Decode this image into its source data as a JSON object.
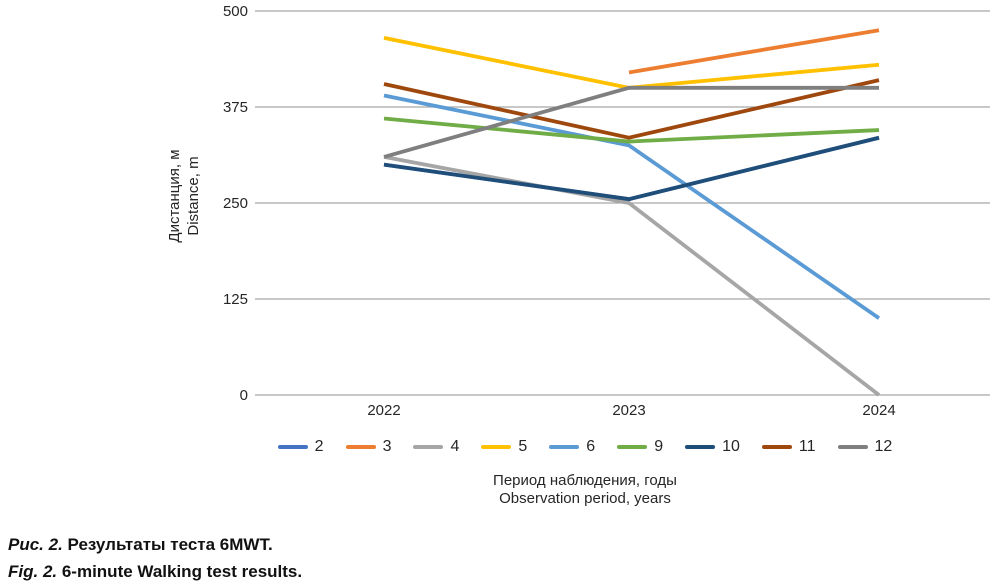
{
  "figure": {
    "caption_ru": {
      "prefix": "Рис. 2.",
      "text": " Результаты теста 6MWT."
    },
    "caption_en": {
      "prefix": "Fig. 2.",
      "text": " 6-minute Walking test results."
    }
  },
  "chart_data": {
    "type": "line",
    "x_labels": [
      "2022",
      "2023",
      "2024"
    ],
    "xlabel_ru": "Период наблюдения, годы",
    "xlabel_en": "Observation period, years",
    "ylabel_ru": "Дистанция, м",
    "ylabel_en": "Distance, m",
    "ylim": [
      0,
      500
    ],
    "yticks_top_to_bottom": [
      "500",
      "375",
      "250",
      "125",
      "0"
    ],
    "ytick_values": [
      500,
      375,
      250,
      125,
      0
    ],
    "grid": true,
    "gridline_color": "#A6A6A6",
    "legend_position": "bottom",
    "series": [
      {
        "name": "2",
        "color": "#4472C4",
        "values": [
          300,
          255,
          335
        ]
      },
      {
        "name": "3",
        "color": "#ED7D31",
        "values": [
          null,
          420,
          475
        ]
      },
      {
        "name": "4",
        "color": "#A6A6A6",
        "values": [
          310,
          250,
          0
        ]
      },
      {
        "name": "5",
        "color": "#FFC000",
        "values": [
          465,
          400,
          430
        ]
      },
      {
        "name": "6",
        "color": "#5B9BD5",
        "values": [
          390,
          325,
          100
        ]
      },
      {
        "name": "9",
        "color": "#70AD47",
        "values": [
          360,
          330,
          345
        ]
      },
      {
        "name": "10",
        "color": "#1F4E79",
        "values": [
          300,
          255,
          335
        ]
      },
      {
        "name": "11",
        "color": "#9E480E",
        "values": [
          405,
          335,
          410
        ]
      },
      {
        "name": "12",
        "color": "#7F7F7F",
        "values": [
          310,
          400,
          400
        ]
      }
    ]
  }
}
